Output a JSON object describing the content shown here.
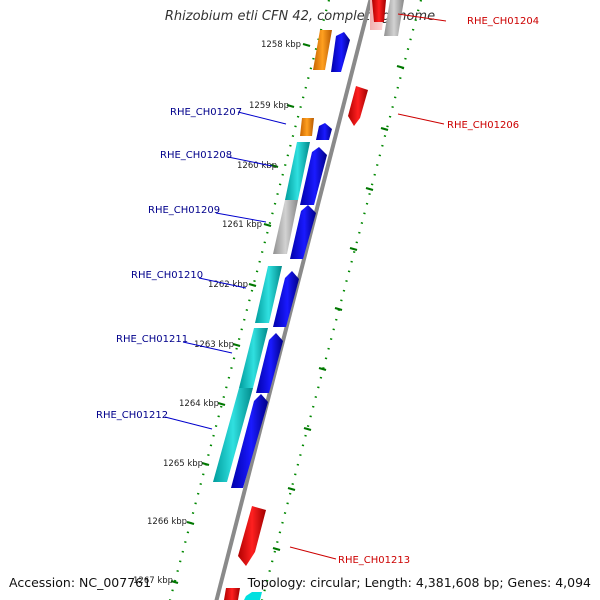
{
  "title": "Rhizobium etli CFN 42, complete genome",
  "footer": {
    "accession": "Accession: NC_007761",
    "summary": "Topology: circular; Length: 4,381,608 bp; Genes: 4,094"
  },
  "colors": {
    "backbone": "#8c8c8c",
    "forward_cds": "#0000ee",
    "forward_gene_orange": "#ff8c00",
    "forward_gene_cyan": "#00c8c8",
    "forward_gene_gray": "#b4b4b4",
    "reverse_cds": "#ee0000",
    "tick_marks": "#007700",
    "label_forward": "#00008b",
    "label_reverse": "#cc0000"
  },
  "scale_labels": [
    "1258 kbp",
    "1259 kbp",
    "1260 kbp",
    "1261 kbp",
    "1262 kbp",
    "1263 kbp",
    "1264 kbp",
    "1265 kbp",
    "1266 kbp",
    "1267 kbp"
  ],
  "gene_labels": {
    "forward": [
      "RHE_CH01207",
      "RHE_CH01208",
      "RHE_CH01209",
      "RHE_CH01210",
      "RHE_CH01211",
      "RHE_CH01212"
    ],
    "reverse": [
      "RHE_CH01204",
      "RHE_CH01206",
      "RHE_CH01213"
    ]
  }
}
